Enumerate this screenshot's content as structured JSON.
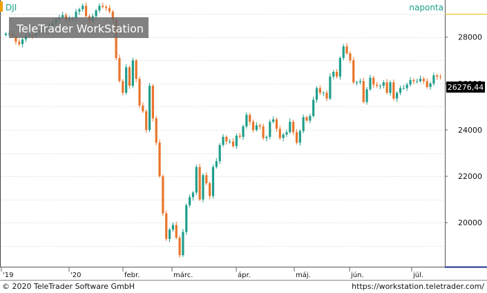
{
  "header": {
    "symbol": "DJI",
    "interval": "naponta",
    "watermark": "TeleTrader WorkStation"
  },
  "colors": {
    "up": "#1f9e8a",
    "down": "#e8742a",
    "accent": "#f0a000",
    "interval": "#1aa08a",
    "last_bg": "#000000"
  },
  "last_value_label": "26276,44",
  "footer": {
    "copyright": "© 2020 TeleTrader Software GmbH",
    "url": "https://workstation.teletrader.com/"
  },
  "chart_data": {
    "type": "candlestick",
    "x_tick_labels": [
      "'19",
      "'20",
      "febr.",
      "márc.",
      "ápr.",
      "máj.",
      "jún.",
      "júl."
    ],
    "y_ticks": [
      20000,
      22000,
      24000,
      26000,
      28000
    ],
    "y_tick_labels": [
      "20000",
      "22000",
      "24000",
      "26000",
      "28000"
    ],
    "ylim": [
      18100,
      29600
    ],
    "grid": true,
    "last_value": 26276.44,
    "closes": [
      28150,
      28150,
      28050,
      27800,
      27700,
      27900,
      28050,
      28100,
      28050,
      28200,
      28250,
      28350,
      28400,
      28500,
      28600,
      28750,
      28850,
      28950,
      28750,
      28800,
      28800,
      29100,
      29200,
      29350,
      28900,
      28700,
      28900,
      29150,
      29350,
      29300,
      29250,
      29100,
      28750,
      27100,
      26100,
      25600,
      26700,
      25900,
      27000,
      26200,
      25050,
      24800,
      24000,
      25900,
      24500,
      23450,
      22000,
      20400,
      19300,
      19700,
      19900,
      19350,
      18600,
      19600,
      20750,
      21100,
      21300,
      22400,
      21000,
      22050,
      21700,
      21150,
      22400,
      22650,
      23350,
      23700,
      23500,
      23500,
      23300,
      23750,
      23700,
      24150,
      24650,
      24350,
      24000,
      24200,
      24150,
      23650,
      23700,
      24350,
      24450,
      24050,
      23650,
      23800,
      23900,
      24350,
      23900,
      23450,
      23950,
      24550,
      24400,
      24600,
      25300,
      25800,
      25600,
      25600,
      25350,
      26300,
      26500,
      26300,
      27100,
      27600,
      27300,
      27000,
      26050,
      26050,
      26100,
      25200,
      25750,
      26250,
      25950,
      25900,
      25900,
      26050,
      25600,
      26050,
      25350,
      25600,
      25800,
      25800,
      25950,
      26150,
      26100,
      26100,
      26200,
      26100,
      25850,
      26000,
      26350,
      26300,
      26276.44
    ]
  }
}
